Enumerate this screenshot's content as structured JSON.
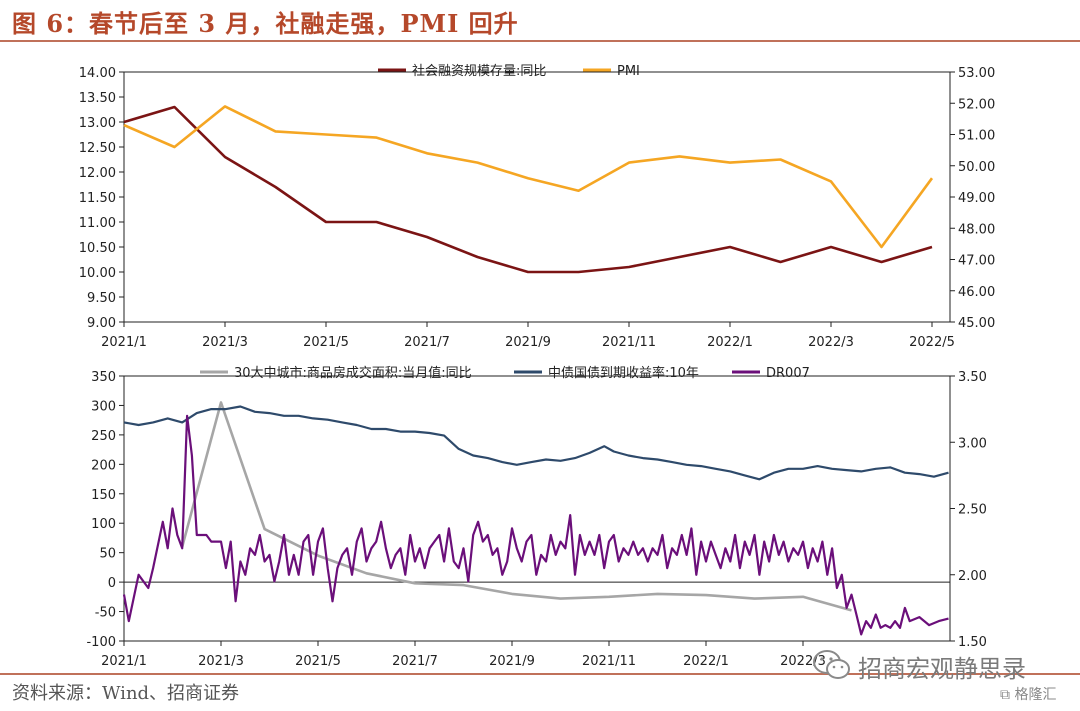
{
  "figure": {
    "title": "图 6：春节后至 3 月，社融走强，PMI 回升",
    "source": "资料来源：Wind、招商证券",
    "watermark": "招商宏观静思录",
    "logo": "格隆汇"
  },
  "colors": {
    "title": "#b5482a",
    "rule": "#c0715a",
    "social_financing": "#7b1414",
    "pmi": "#f5a623",
    "housing": "#a6a6a6",
    "bond_yield": "#2e4a6b",
    "dr007": "#6b0f7a"
  },
  "chart_data": [
    {
      "type": "line",
      "x_ticks": [
        "2021/1",
        "2021/3",
        "2021/5",
        "2021/7",
        "2021/9",
        "2021/11",
        "2022/1",
        "2022/3",
        "2022/5"
      ],
      "x": [
        "2021/1",
        "2021/2",
        "2021/3",
        "2021/4",
        "2021/5",
        "2021/6",
        "2021/7",
        "2021/8",
        "2021/9",
        "2021/10",
        "2021/11",
        "2021/12",
        "2022/1",
        "2022/2",
        "2022/3",
        "2022/4",
        "2022/5"
      ],
      "ylim_left": [
        9.0,
        14.0
      ],
      "yticks_left": [
        "9.00",
        "9.50",
        "10.00",
        "10.50",
        "11.00",
        "11.50",
        "12.00",
        "12.50",
        "13.00",
        "13.50",
        "14.00"
      ],
      "ylim_right": [
        45.0,
        53.0
      ],
      "yticks_right": [
        "45.00",
        "46.00",
        "47.00",
        "48.00",
        "49.00",
        "50.00",
        "51.00",
        "52.00",
        "53.00"
      ],
      "legend_position": "top-center",
      "series": [
        {
          "name": "社会融资规模存量:同比",
          "axis": "left",
          "color": "#7b1414",
          "values": [
            13.0,
            13.3,
            12.3,
            11.7,
            11.0,
            11.0,
            10.7,
            10.3,
            10.0,
            10.0,
            10.1,
            10.3,
            10.5,
            10.2,
            10.5,
            10.2,
            10.5
          ]
        },
        {
          "name": "PMI",
          "axis": "right",
          "color": "#f5a623",
          "values": [
            51.3,
            50.6,
            51.9,
            51.1,
            51.0,
            50.9,
            50.4,
            50.1,
            49.6,
            49.2,
            50.1,
            50.3,
            50.1,
            50.2,
            49.5,
            47.4,
            49.6
          ]
        }
      ]
    },
    {
      "type": "line",
      "x_ticks": [
        "2021/1",
        "2021/3",
        "2021/5",
        "2021/7",
        "2021/9",
        "2021/11",
        "2022/1",
        "2022/3"
      ],
      "ylim_left": [
        -100,
        350
      ],
      "yticks_left": [
        "-100",
        "-50",
        "0",
        "50",
        "100",
        "150",
        "200",
        "250",
        "300",
        "350"
      ],
      "ylim_right": [
        1.5,
        3.5
      ],
      "yticks_right": [
        "1.50",
        "2.00",
        "2.50",
        "3.00",
        "3.50"
      ],
      "legend_position": "top-center",
      "series": [
        {
          "name": "30大中城市:商品房成交面积:当月值:同比",
          "axis": "left",
          "color": "#a6a6a6",
          "x": [
            1.2,
            2.0,
            2.9,
            4.0,
            5.0,
            6.0,
            7.0,
            8.0,
            9.0,
            10.0,
            11.0,
            12.0,
            13.0,
            14.0,
            15.0
          ],
          "values": [
            60,
            305,
            90,
            45,
            15,
            -2,
            -5,
            -20,
            -28,
            -25,
            -20,
            -22,
            -28,
            -25,
            -48
          ]
        },
        {
          "name": "中债国债到期收益率:10年",
          "axis": "right",
          "color": "#2e4a6b",
          "points": [
            [
              0.0,
              3.15
            ],
            [
              0.3,
              3.13
            ],
            [
              0.6,
              3.15
            ],
            [
              0.9,
              3.18
            ],
            [
              1.2,
              3.15
            ],
            [
              1.5,
              3.22
            ],
            [
              1.8,
              3.25
            ],
            [
              2.1,
              3.25
            ],
            [
              2.4,
              3.27
            ],
            [
              2.7,
              3.23
            ],
            [
              3.0,
              3.22
            ],
            [
              3.3,
              3.2
            ],
            [
              3.6,
              3.2
            ],
            [
              3.9,
              3.18
            ],
            [
              4.2,
              3.17
            ],
            [
              4.5,
              3.15
            ],
            [
              4.8,
              3.13
            ],
            [
              5.1,
              3.1
            ],
            [
              5.4,
              3.1
            ],
            [
              5.7,
              3.08
            ],
            [
              6.0,
              3.08
            ],
            [
              6.3,
              3.07
            ],
            [
              6.6,
              3.05
            ],
            [
              6.9,
              2.95
            ],
            [
              7.2,
              2.9
            ],
            [
              7.5,
              2.88
            ],
            [
              7.8,
              2.85
            ],
            [
              8.1,
              2.83
            ],
            [
              8.4,
              2.85
            ],
            [
              8.7,
              2.87
            ],
            [
              9.0,
              2.86
            ],
            [
              9.3,
              2.88
            ],
            [
              9.6,
              2.92
            ],
            [
              9.9,
              2.97
            ],
            [
              10.1,
              2.93
            ],
            [
              10.4,
              2.9
            ],
            [
              10.7,
              2.88
            ],
            [
              11.0,
              2.87
            ],
            [
              11.3,
              2.85
            ],
            [
              11.6,
              2.83
            ],
            [
              11.9,
              2.82
            ],
            [
              12.2,
              2.8
            ],
            [
              12.5,
              2.78
            ],
            [
              12.8,
              2.75
            ],
            [
              13.1,
              2.72
            ],
            [
              13.4,
              2.77
            ],
            [
              13.7,
              2.8
            ],
            [
              14.0,
              2.8
            ],
            [
              14.3,
              2.82
            ],
            [
              14.6,
              2.8
            ],
            [
              14.9,
              2.79
            ],
            [
              15.2,
              2.78
            ],
            [
              15.5,
              2.8
            ],
            [
              15.8,
              2.81
            ],
            [
              16.1,
              2.77
            ],
            [
              16.4,
              2.76
            ],
            [
              16.7,
              2.74
            ],
            [
              17.0,
              2.77
            ]
          ]
        },
        {
          "name": "DR007",
          "axis": "right",
          "color": "#6b0f7a",
          "points": [
            [
              0.0,
              1.85
            ],
            [
              0.1,
              1.65
            ],
            [
              0.3,
              2.0
            ],
            [
              0.5,
              1.9
            ],
            [
              0.6,
              2.05
            ],
            [
              0.8,
              2.4
            ],
            [
              0.9,
              2.2
            ],
            [
              1.0,
              2.5
            ],
            [
              1.1,
              2.3
            ],
            [
              1.2,
              2.2
            ],
            [
              1.3,
              3.2
            ],
            [
              1.4,
              2.9
            ],
            [
              1.5,
              2.3
            ],
            [
              1.7,
              2.3
            ],
            [
              1.8,
              2.25
            ],
            [
              1.9,
              2.25
            ],
            [
              2.0,
              2.25
            ],
            [
              2.1,
              2.05
            ],
            [
              2.2,
              2.25
            ],
            [
              2.3,
              1.8
            ],
            [
              2.4,
              2.1
            ],
            [
              2.5,
              2.0
            ],
            [
              2.6,
              2.2
            ],
            [
              2.7,
              2.15
            ],
            [
              2.8,
              2.3
            ],
            [
              2.9,
              2.1
            ],
            [
              3.0,
              2.15
            ],
            [
              3.1,
              1.95
            ],
            [
              3.2,
              2.1
            ],
            [
              3.3,
              2.3
            ],
            [
              3.4,
              2.0
            ],
            [
              3.5,
              2.15
            ],
            [
              3.6,
              2.0
            ],
            [
              3.7,
              2.25
            ],
            [
              3.8,
              2.3
            ],
            [
              3.9,
              2.0
            ],
            [
              4.0,
              2.25
            ],
            [
              4.1,
              2.35
            ],
            [
              4.2,
              2.05
            ],
            [
              4.3,
              1.8
            ],
            [
              4.4,
              2.05
            ],
            [
              4.5,
              2.15
            ],
            [
              4.6,
              2.2
            ],
            [
              4.7,
              2.0
            ],
            [
              4.8,
              2.25
            ],
            [
              4.9,
              2.35
            ],
            [
              5.0,
              2.1
            ],
            [
              5.1,
              2.2
            ],
            [
              5.2,
              2.25
            ],
            [
              5.3,
              2.4
            ],
            [
              5.4,
              2.2
            ],
            [
              5.5,
              2.05
            ],
            [
              5.6,
              2.15
            ],
            [
              5.7,
              2.2
            ],
            [
              5.8,
              2.0
            ],
            [
              5.9,
              2.3
            ],
            [
              6.0,
              2.1
            ],
            [
              6.1,
              2.2
            ],
            [
              6.2,
              2.05
            ],
            [
              6.3,
              2.2
            ],
            [
              6.4,
              2.25
            ],
            [
              6.5,
              2.3
            ],
            [
              6.6,
              2.1
            ],
            [
              6.7,
              2.35
            ],
            [
              6.8,
              2.1
            ],
            [
              6.9,
              2.05
            ],
            [
              7.0,
              2.2
            ],
            [
              7.1,
              1.95
            ],
            [
              7.2,
              2.3
            ],
            [
              7.3,
              2.4
            ],
            [
              7.4,
              2.25
            ],
            [
              7.5,
              2.3
            ],
            [
              7.6,
              2.15
            ],
            [
              7.7,
              2.2
            ],
            [
              7.8,
              2.0
            ],
            [
              7.9,
              2.1
            ],
            [
              8.0,
              2.35
            ],
            [
              8.1,
              2.2
            ],
            [
              8.2,
              2.1
            ],
            [
              8.3,
              2.25
            ],
            [
              8.4,
              2.3
            ],
            [
              8.5,
              2.0
            ],
            [
              8.6,
              2.15
            ],
            [
              8.7,
              2.1
            ],
            [
              8.8,
              2.3
            ],
            [
              8.9,
              2.15
            ],
            [
              9.0,
              2.25
            ],
            [
              9.1,
              2.2
            ],
            [
              9.2,
              2.45
            ],
            [
              9.3,
              2.0
            ],
            [
              9.4,
              2.3
            ],
            [
              9.5,
              2.15
            ],
            [
              9.6,
              2.25
            ],
            [
              9.7,
              2.15
            ],
            [
              9.8,
              2.3
            ],
            [
              9.9,
              2.05
            ],
            [
              10.0,
              2.25
            ],
            [
              10.1,
              2.3
            ],
            [
              10.2,
              2.1
            ],
            [
              10.3,
              2.2
            ],
            [
              10.4,
              2.15
            ],
            [
              10.5,
              2.25
            ],
            [
              10.6,
              2.15
            ],
            [
              10.7,
              2.2
            ],
            [
              10.8,
              2.1
            ],
            [
              10.9,
              2.2
            ],
            [
              11.0,
              2.15
            ],
            [
              11.1,
              2.3
            ],
            [
              11.2,
              2.05
            ],
            [
              11.3,
              2.2
            ],
            [
              11.4,
              2.15
            ],
            [
              11.5,
              2.3
            ],
            [
              11.6,
              2.15
            ],
            [
              11.7,
              2.35
            ],
            [
              11.8,
              2.0
            ],
            [
              11.9,
              2.25
            ],
            [
              12.0,
              2.1
            ],
            [
              12.1,
              2.25
            ],
            [
              12.2,
              2.15
            ],
            [
              12.3,
              2.05
            ],
            [
              12.4,
              2.2
            ],
            [
              12.5,
              2.1
            ],
            [
              12.6,
              2.3
            ],
            [
              12.7,
              2.05
            ],
            [
              12.8,
              2.25
            ],
            [
              12.9,
              2.15
            ],
            [
              13.0,
              2.3
            ],
            [
              13.1,
              2.0
            ],
            [
              13.2,
              2.25
            ],
            [
              13.3,
              2.1
            ],
            [
              13.4,
              2.3
            ],
            [
              13.5,
              2.15
            ],
            [
              13.6,
              2.25
            ],
            [
              13.7,
              2.1
            ],
            [
              13.8,
              2.2
            ],
            [
              13.9,
              2.15
            ],
            [
              14.0,
              2.25
            ],
            [
              14.1,
              2.05
            ],
            [
              14.2,
              2.2
            ],
            [
              14.3,
              2.1
            ],
            [
              14.4,
              2.25
            ],
            [
              14.5,
              2.0
            ],
            [
              14.6,
              2.2
            ],
            [
              14.7,
              1.9
            ],
            [
              14.8,
              2.0
            ],
            [
              14.9,
              1.75
            ],
            [
              15.0,
              1.85
            ],
            [
              15.1,
              1.7
            ],
            [
              15.2,
              1.55
            ],
            [
              15.3,
              1.65
            ],
            [
              15.4,
              1.6
            ],
            [
              15.5,
              1.7
            ],
            [
              15.6,
              1.6
            ],
            [
              15.7,
              1.62
            ],
            [
              15.8,
              1.6
            ],
            [
              15.9,
              1.65
            ],
            [
              16.0,
              1.6
            ],
            [
              16.1,
              1.75
            ],
            [
              16.2,
              1.65
            ],
            [
              16.4,
              1.68
            ],
            [
              16.6,
              1.62
            ],
            [
              16.8,
              1.65
            ],
            [
              17.0,
              1.67
            ]
          ]
        }
      ]
    }
  ]
}
